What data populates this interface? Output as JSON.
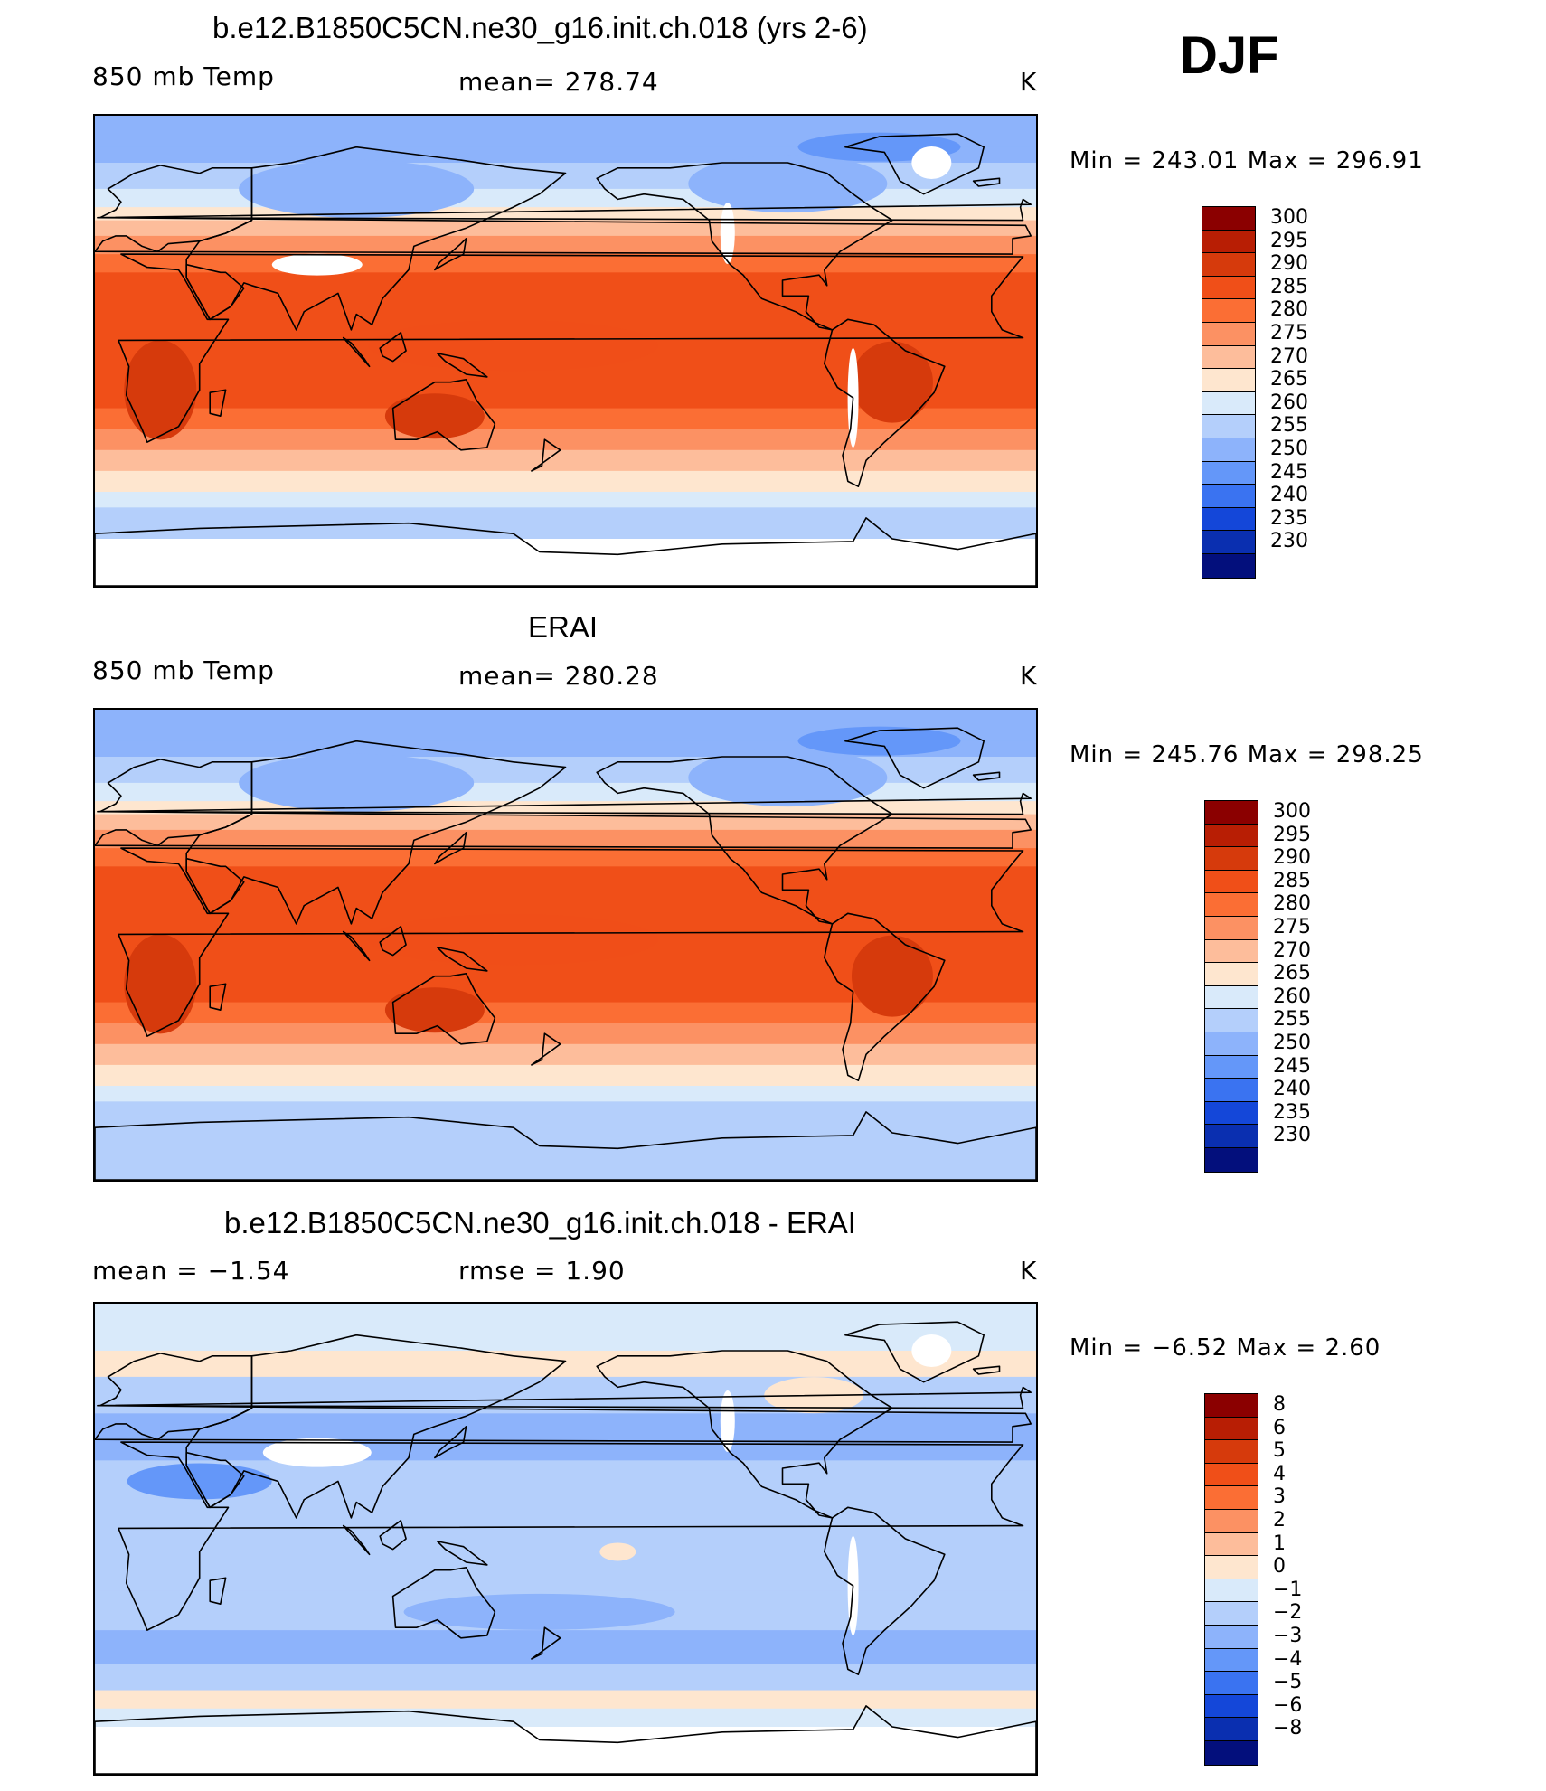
{
  "season": "DJF",
  "panels": [
    {
      "title": "b.e12.B1850C5CN.ne30_g16.init.ch.018 (yrs 2-6)",
      "left_label": "850 mb Temp",
      "center_label": "mean=  278.74",
      "units": "K",
      "minmax": "Min  =  243.01  Max  =  296.91",
      "scale": "abs",
      "missing_land": true
    },
    {
      "title": "ERAI",
      "left_label": "850 mb Temp",
      "center_label": "mean=  280.28",
      "units": "K",
      "minmax": "Min  =  245.76  Max  =  298.25",
      "scale": "abs",
      "missing_land": false
    },
    {
      "title": "b.e12.B1850C5CN.ne30_g16.init.ch.018 - ERAI",
      "left_label": "mean  =    −1.54",
      "center_label": "rmse  =     1.90",
      "units": "K",
      "minmax": "Min  =    −6.52  Max  =     2.60",
      "scale": "diff",
      "missing_land": true
    }
  ],
  "colorbars": {
    "abs": {
      "labels": [
        "300",
        "295",
        "290",
        "285",
        "280",
        "275",
        "270",
        "265",
        "260",
        "255",
        "250",
        "245",
        "240",
        "235",
        "230"
      ],
      "colors": [
        "#8b0000",
        "#b81e04",
        "#d63a0c",
        "#f04f18",
        "#fb6e34",
        "#fc9163",
        "#fdbd9b",
        "#fee6cf",
        "#d9eafa",
        "#b4cffb",
        "#8db3fb",
        "#6497f9",
        "#3a73f1",
        "#1447d9",
        "#0a2fb0",
        "#030f7c"
      ]
    },
    "diff": {
      "labels": [
        "8",
        "6",
        "5",
        "4",
        "3",
        "2",
        "1",
        "0",
        "−1",
        "−2",
        "−3",
        "−4",
        "−5",
        "−6",
        "−8"
      ],
      "colors": [
        "#8b0000",
        "#b81e04",
        "#d63a0c",
        "#f04f18",
        "#fb6e34",
        "#fc9163",
        "#fdbd9b",
        "#fee6cf",
        "#d9eafa",
        "#b4cffb",
        "#8db3fb",
        "#6497f9",
        "#3a73f1",
        "#1447d9",
        "#0a2fb0",
        "#030f7c"
      ]
    }
  }
}
